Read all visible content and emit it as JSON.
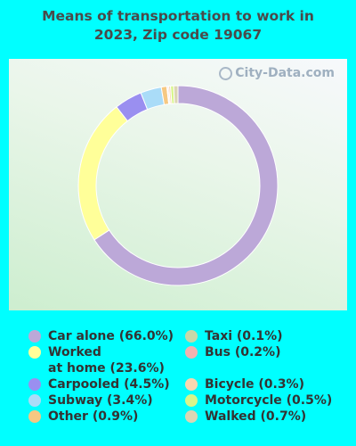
{
  "chart_data": {
    "type": "pie",
    "title": "Means of transportation to work in\n2023, Zip code 19067",
    "series": [
      {
        "name": "Car alone (66.0%)",
        "value": 66.0,
        "color": "#bca8d8"
      },
      {
        "name": "Worked\nat home (23.6%)",
        "value": 23.6,
        "color": "#ffff99"
      },
      {
        "name": "Carpooled (4.5%)",
        "value": 4.5,
        "color": "#9a8ff0"
      },
      {
        "name": "Subway (3.4%)",
        "value": 3.4,
        "color": "#aadcf8"
      },
      {
        "name": "Other (0.9%)",
        "value": 0.9,
        "color": "#f6c882"
      },
      {
        "name": "Taxi (0.1%)",
        "value": 0.1,
        "color": "#c8d8a8"
      },
      {
        "name": "Bus (0.2%)",
        "value": 0.2,
        "color": "#f2b2b0"
      },
      {
        "name": "Bicycle (0.3%)",
        "value": 0.3,
        "color": "#f9d7b0"
      },
      {
        "name": "Motorcycle (0.5%)",
        "value": 0.5,
        "color": "#d8f58a"
      },
      {
        "name": "Walked (0.7%)",
        "value": 0.7,
        "color": "#dcd6b4"
      }
    ],
    "slice_order": [
      0,
      1,
      2,
      3,
      4,
      5,
      6,
      7,
      8,
      9
    ],
    "legend_position": "bottom",
    "watermark": "City-Data.com"
  }
}
